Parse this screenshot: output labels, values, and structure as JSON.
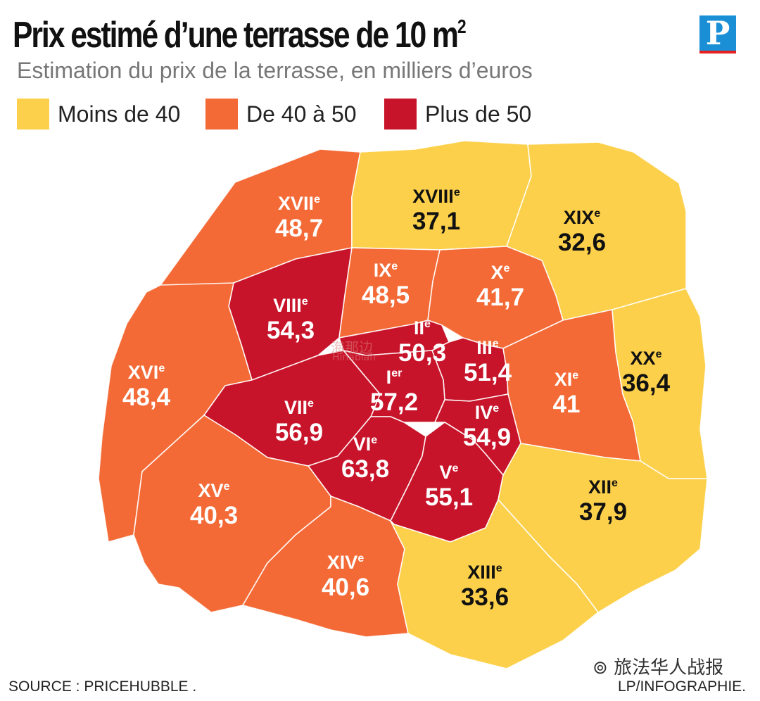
{
  "title": "Prix estimé d’une terrasse de 10 m",
  "title_sup": "2",
  "subtitle": "Estimation du prix de la terrasse, en milliers d’euros",
  "logo_letter": "P",
  "legend": [
    {
      "label": "Moins de 40",
      "color": "#fcd04a"
    },
    {
      "label": "De 40 à 50",
      "color": "#f46a36"
    },
    {
      "label": "Plus de 50",
      "color": "#c8142a"
    }
  ],
  "districts": [
    {
      "numeral": "XVII",
      "suffix": "e",
      "value": "48,7",
      "color": "#f46a36",
      "text_color": "#ffffff"
    },
    {
      "numeral": "XVIII",
      "suffix": "e",
      "value": "37,1",
      "color": "#fcd04a",
      "text_color": "#111111"
    },
    {
      "numeral": "XIX",
      "suffix": "e",
      "value": "32,6",
      "color": "#fcd04a",
      "text_color": "#111111"
    },
    {
      "numeral": "VIII",
      "suffix": "e",
      "value": "54,3",
      "color": "#c8142a",
      "text_color": "#ffffff"
    },
    {
      "numeral": "IX",
      "suffix": "e",
      "value": "48,5",
      "color": "#f46a36",
      "text_color": "#ffffff"
    },
    {
      "numeral": "X",
      "suffix": "e",
      "value": "41,7",
      "color": "#f46a36",
      "text_color": "#ffffff"
    },
    {
      "numeral": "XVI",
      "suffix": "e",
      "value": "48,4",
      "color": "#f46a36",
      "text_color": "#ffffff"
    },
    {
      "numeral": "II",
      "suffix": "e",
      "value": "50,3",
      "color": "#c8142a",
      "text_color": "#ffffff"
    },
    {
      "numeral": "III",
      "suffix": "e",
      "value": "51,4",
      "color": "#c8142a",
      "text_color": "#ffffff"
    },
    {
      "numeral": "I",
      "suffix": "er",
      "value": "57,2",
      "color": "#c8142a",
      "text_color": "#ffffff"
    },
    {
      "numeral": "XI",
      "suffix": "e",
      "value": "41",
      "color": "#f46a36",
      "text_color": "#ffffff"
    },
    {
      "numeral": "XX",
      "suffix": "e",
      "value": "36,4",
      "color": "#fcd04a",
      "text_color": "#111111"
    },
    {
      "numeral": "VII",
      "suffix": "e",
      "value": "56,9",
      "color": "#c8142a",
      "text_color": "#ffffff"
    },
    {
      "numeral": "IV",
      "suffix": "e",
      "value": "54,9",
      "color": "#c8142a",
      "text_color": "#ffffff"
    },
    {
      "numeral": "VI",
      "suffix": "e",
      "value": "63,8",
      "color": "#c8142a",
      "text_color": "#ffffff"
    },
    {
      "numeral": "V",
      "suffix": "e",
      "value": "55,1",
      "color": "#c8142a",
      "text_color": "#ffffff"
    },
    {
      "numeral": "XV",
      "suffix": "e",
      "value": "40,3",
      "color": "#f46a36",
      "text_color": "#ffffff"
    },
    {
      "numeral": "XII",
      "suffix": "e",
      "value": "37,9",
      "color": "#fcd04a",
      "text_color": "#111111"
    },
    {
      "numeral": "XIV",
      "suffix": "e",
      "value": "40,6",
      "color": "#f46a36",
      "text_color": "#ffffff"
    },
    {
      "numeral": "XIII",
      "suffix": "e",
      "value": "33,6",
      "color": "#fcd04a",
      "text_color": "#111111"
    }
  ],
  "source": "SOURCE : PRICEHUBBLE .",
  "credit": "LP/INFOGRAPHIE.",
  "watermark_wechat": "旅法华人战报",
  "watermark_haibian": "海那边",
  "watermark_haibian_latin": "Hinabian"
}
